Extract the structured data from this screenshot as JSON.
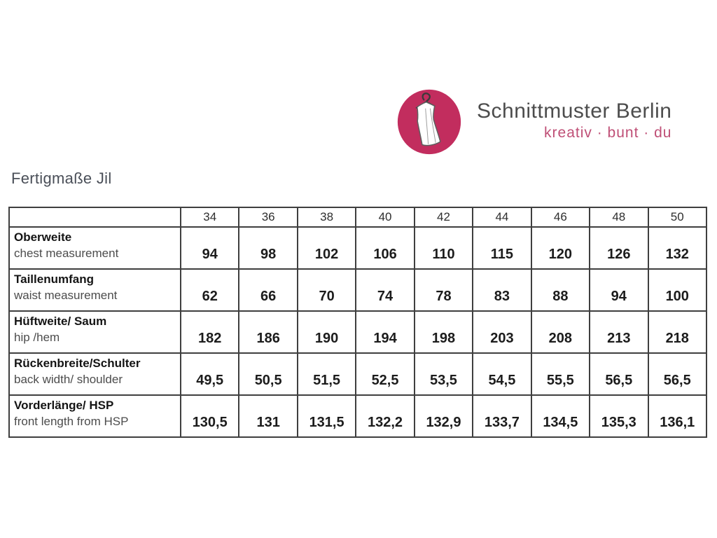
{
  "brand": {
    "name": "Schnittmuster Berlin",
    "tagline": "kreativ · bunt · du",
    "logo_color": "#c22d5e",
    "tagline_color": "#bf4f76",
    "logo_icon": "dress-on-hanger-icon"
  },
  "page": {
    "title": "Fertigmaße Jil"
  },
  "chart_data": {
    "type": "table",
    "title": "Fertigmaße Jil",
    "columns": [
      "",
      "34",
      "36",
      "38",
      "40",
      "42",
      "44",
      "46",
      "48",
      "50"
    ],
    "rows": [
      {
        "label_de": "Oberweite",
        "label_en": "chest measurement",
        "values": [
          "94",
          "98",
          "102",
          "106",
          "110",
          "115",
          "120",
          "126",
          "132"
        ]
      },
      {
        "label_de": "Taillenumfang",
        "label_en": "waist measurement",
        "values": [
          "62",
          "66",
          "70",
          "74",
          "78",
          "83",
          "88",
          "94",
          "100"
        ]
      },
      {
        "label_de": "Hüftweite/ Saum",
        "label_en": "hip /hem",
        "values": [
          "182",
          "186",
          "190",
          "194",
          "198",
          "203",
          "208",
          "213",
          "218"
        ]
      },
      {
        "label_de": "Rückenbreite/Schulter",
        "label_en": "back width/ shoulder",
        "values": [
          "49,5",
          "50,5",
          "51,5",
          "52,5",
          "53,5",
          "54,5",
          "55,5",
          "56,5",
          "56,5"
        ]
      },
      {
        "label_de": "Vorderlänge/ HSP",
        "label_en": "front length from HSP",
        "values": [
          "130,5",
          "131",
          "131,5",
          "132,2",
          "132,9",
          "133,7",
          "134,5",
          "135,3",
          "136,1"
        ]
      }
    ],
    "sizes": [
      "34",
      "36",
      "38",
      "40",
      "42",
      "44",
      "46",
      "48",
      "50"
    ]
  }
}
